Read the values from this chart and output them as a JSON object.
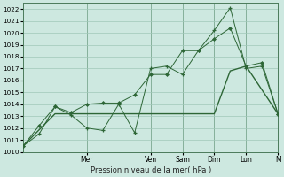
{
  "xlabel": "Pression niveau de la mer( hPa )",
  "bg_color": "#cde8e0",
  "grid_color": "#a0c8b8",
  "line_color": "#2d6636",
  "sep_color": "#4a7a5a",
  "ylim": [
    1010,
    1022.5
  ],
  "ytick_min": 1010,
  "ytick_max": 1022,
  "xlim_min": 0,
  "xlim_max": 8.0,
  "day_labels": [
    "Mer",
    "Ven",
    "Sam",
    "Dim",
    "Lun",
    "M"
  ],
  "day_positions": [
    2.0,
    4.0,
    5.0,
    6.0,
    7.0,
    8.0
  ],
  "s1_x": [
    0,
    0.5,
    1.0,
    1.5,
    2.0,
    2.5,
    3.0,
    3.5,
    4.0,
    4.5,
    5.0,
    5.5,
    6.0,
    6.5,
    7.0,
    7.5,
    8.0
  ],
  "s1_y": [
    1010.5,
    1011.5,
    1013.8,
    1013.1,
    1012.0,
    1011.8,
    1014.0,
    1011.6,
    1017.0,
    1017.2,
    1016.5,
    1018.5,
    1020.2,
    1022.1,
    1017.0,
    1017.2,
    1013.2
  ],
  "s2_x": [
    0,
    0.5,
    1.0,
    1.5,
    2.0,
    2.5,
    3.0,
    3.5,
    4.0,
    4.5,
    5.0,
    5.5,
    6.0,
    6.5,
    7.0,
    7.5,
    8.0
  ],
  "s2_y": [
    1010.5,
    1012.2,
    1013.8,
    1013.3,
    1014.0,
    1014.1,
    1014.1,
    1014.8,
    1016.5,
    1016.5,
    1018.5,
    1018.5,
    1019.5,
    1020.4,
    1017.2,
    1017.5,
    1013.2
  ],
  "s3_x": [
    0,
    1.0,
    2.0,
    3.0,
    4.0,
    5.0,
    6.0,
    6.5,
    7.0,
    8.0
  ],
  "s3_y": [
    1010.5,
    1013.2,
    1013.2,
    1013.2,
    1013.2,
    1013.2,
    1013.2,
    1016.8,
    1017.2,
    1013.2
  ]
}
